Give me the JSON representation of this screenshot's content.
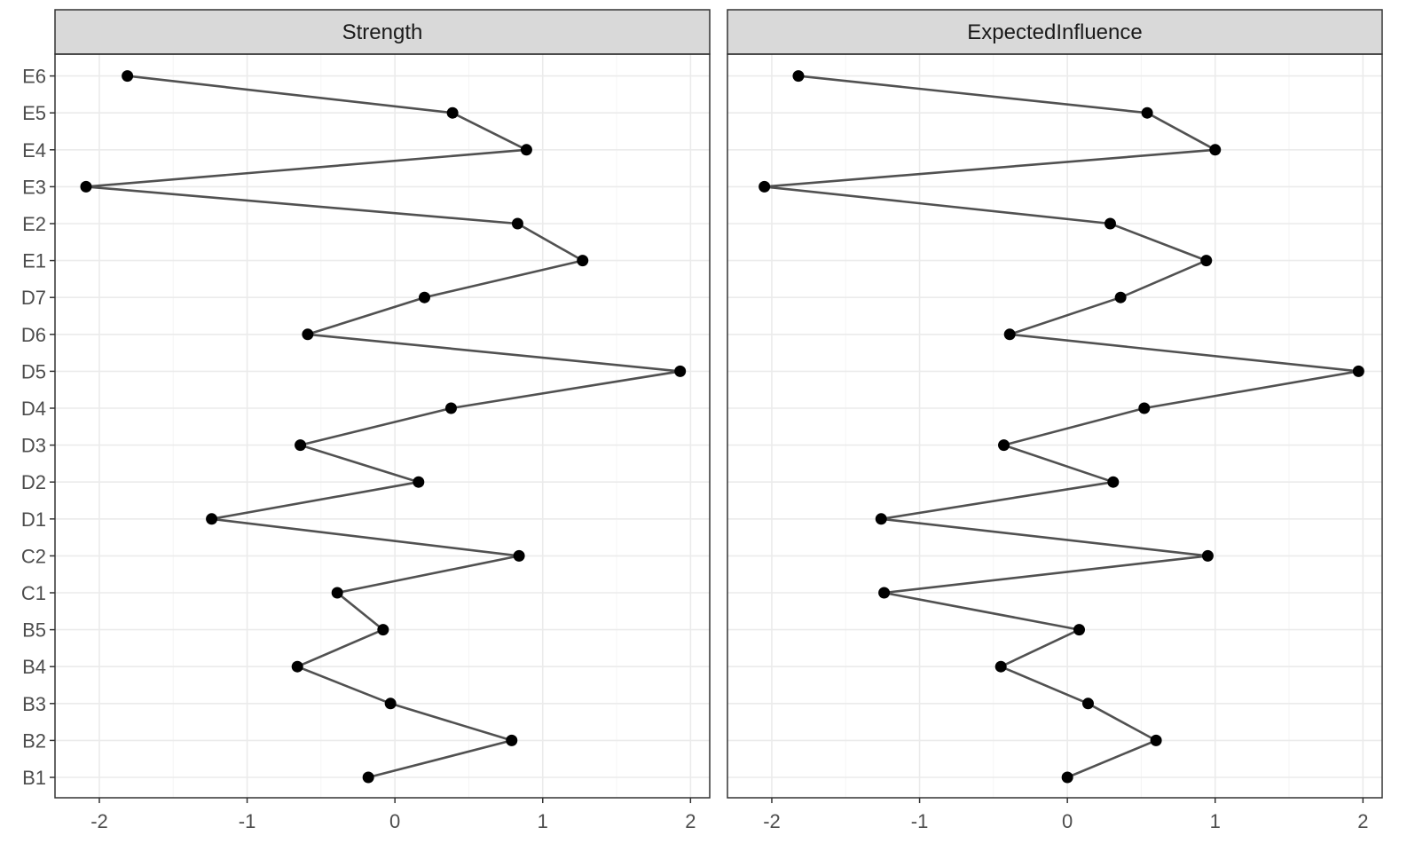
{
  "chart_data": {
    "type": "line",
    "orientation": "horizontal",
    "categories": [
      "B1",
      "B2",
      "B3",
      "B4",
      "B5",
      "C1",
      "C2",
      "D1",
      "D2",
      "D3",
      "D4",
      "D5",
      "D6",
      "D7",
      "E1",
      "E2",
      "E3",
      "E4",
      "E5",
      "E6"
    ],
    "xlim": [
      -2.3,
      2.13
    ],
    "x_ticks": [
      -2,
      -1,
      0,
      1,
      2
    ],
    "x_tick_labels": [
      "-2",
      "-1",
      "0",
      "1",
      "2"
    ],
    "grid": true,
    "legend": "none",
    "colors": {
      "line": "#333333",
      "point": "#000000",
      "strip_fill": "#d9d9d9",
      "grid_major": "#ebebeb",
      "grid_minor": "#f5f5f5",
      "panel_border": "#333333"
    },
    "panels": [
      {
        "strip": "Strength",
        "values": [
          -0.18,
          0.79,
          -0.03,
          -0.66,
          -0.08,
          -0.39,
          0.84,
          -1.24,
          0.16,
          -0.64,
          0.38,
          1.93,
          -0.59,
          0.2,
          1.27,
          0.83,
          -2.09,
          0.89,
          0.39,
          -1.81
        ]
      },
      {
        "strip": "ExpectedInfluence",
        "values": [
          0.0,
          0.6,
          0.14,
          -0.45,
          0.08,
          -1.24,
          0.95,
          -1.26,
          0.31,
          -0.43,
          0.52,
          1.97,
          -0.39,
          0.36,
          0.94,
          0.29,
          -2.05,
          1.0,
          0.54,
          -1.82
        ]
      }
    ]
  }
}
